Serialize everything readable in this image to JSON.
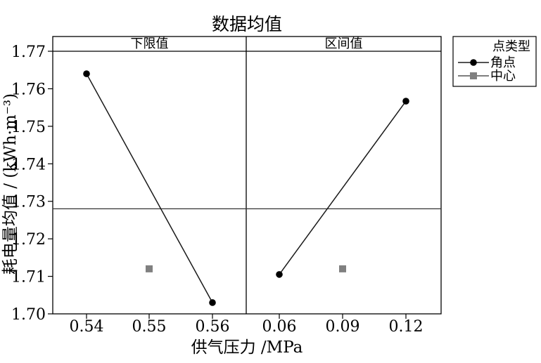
{
  "chart_data": {
    "type": "line",
    "title": "数据均值",
    "xlabel": "供气压力 /MPa",
    "ylabel": "耗电量均值 / (kWh·m⁻³)",
    "ylim": [
      1.7,
      1.77
    ],
    "yticks": [
      1.77,
      1.76,
      1.75,
      1.74,
      1.73,
      1.72,
      1.71,
      1.7
    ],
    "overall_mean": 1.728,
    "grid": false,
    "legend": {
      "title": "点类型",
      "placement": "right",
      "entries": [
        {
          "label": "角点",
          "marker": "circle",
          "color": "#000000"
        },
        {
          "label": "中心",
          "marker": "square",
          "color": "#808080"
        }
      ]
    },
    "panels": [
      {
        "name": "下限值",
        "categories": [
          "0.54",
          "0.55",
          "0.56"
        ],
        "series": [
          {
            "name": "角点",
            "points": [
              {
                "x": "0.54",
                "y": 1.764
              },
              {
                "x": "0.56",
                "y": 1.703
              }
            ]
          },
          {
            "name": "中心",
            "points": [
              {
                "x": "0.55",
                "y": 1.712
              }
            ]
          }
        ]
      },
      {
        "name": "区间值",
        "categories": [
          "0.06",
          "0.09",
          "0.12"
        ],
        "series": [
          {
            "name": "角点",
            "points": [
              {
                "x": "0.06",
                "y": 1.7105
              },
              {
                "x": "0.12",
                "y": 1.7567
              }
            ]
          },
          {
            "name": "中心",
            "points": [
              {
                "x": "0.09",
                "y": 1.712
              }
            ]
          }
        ]
      }
    ]
  }
}
